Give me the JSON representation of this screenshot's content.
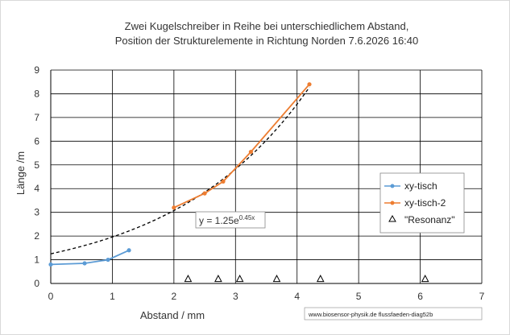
{
  "chart_data": {
    "type": "scatter",
    "title": [
      "Zwei Kugelschreiber in Reihe bei unterschiedlichem Abstand,",
      "Position der Strukturelemente in Richtung Norden  7.6.2026 16:40"
    ],
    "xlabel": "Abstand / mm",
    "ylabel": "Länge /m",
    "xlim": [
      0,
      7
    ],
    "ylim": [
      0,
      9
    ],
    "xticks": [
      "0",
      "1",
      "2",
      "3",
      "4",
      "5",
      "6",
      "7"
    ],
    "yticks": [
      "0",
      "1",
      "2",
      "3",
      "4",
      "5",
      "6",
      "7",
      "8",
      "9"
    ],
    "grid": "major",
    "legend_position": "right",
    "series": [
      {
        "name": "xy-tisch",
        "style": "line-markers",
        "color": "#5b9bd5",
        "points": [
          [
            0,
            0.8
          ],
          [
            0.55,
            0.85
          ],
          [
            0.93,
            1.0
          ],
          [
            1.27,
            1.4
          ]
        ]
      },
      {
        "name": "xy-tisch-2",
        "style": "line-markers",
        "color": "#ed7d31",
        "points": [
          [
            2.0,
            3.2
          ],
          [
            2.5,
            3.8
          ],
          [
            2.8,
            4.3
          ],
          [
            3.25,
            5.55
          ],
          [
            4.2,
            8.4
          ]
        ]
      },
      {
        "name": "\"Resonanz\"",
        "style": "triangle-markers",
        "color": "#000000",
        "points": [
          [
            2.23,
            0.2
          ],
          [
            2.72,
            0.2
          ],
          [
            3.07,
            0.2
          ],
          [
            3.67,
            0.2
          ],
          [
            4.38,
            0.2
          ],
          [
            6.08,
            0.2
          ]
        ]
      }
    ],
    "trendline": {
      "type": "exponential",
      "a": 1.25,
      "b": 0.45,
      "x_range": [
        0,
        4.2
      ],
      "color": "#000000",
      "label_base": "y = 1.25e",
      "label_exp": "0.45x"
    },
    "credit": "www.biosensor-physik.de  flussfaeden-diag52b"
  }
}
